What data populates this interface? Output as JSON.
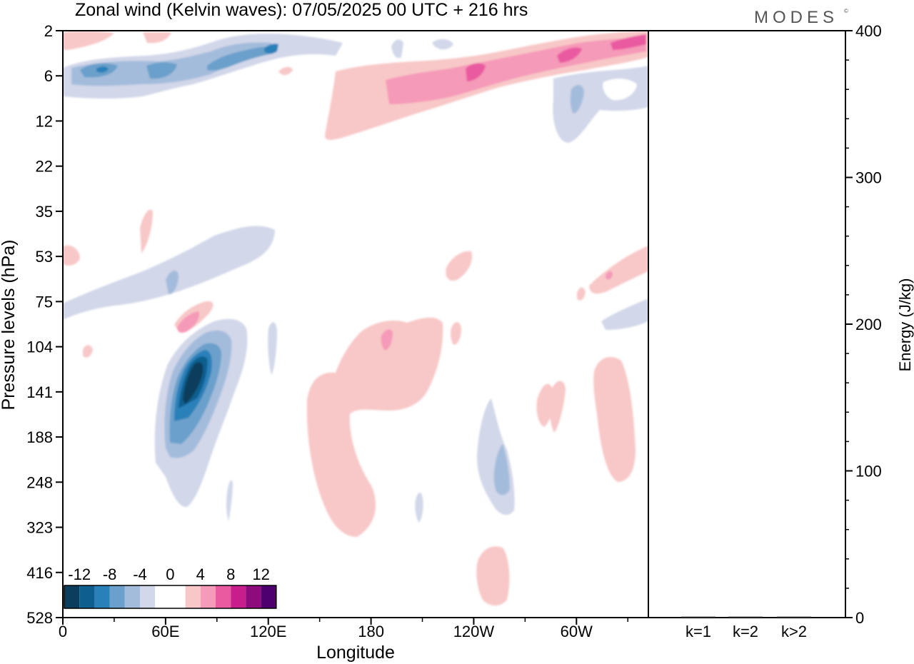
{
  "header": {
    "title": "Zonal wind (Kelvin waves):  07/05/2025  00 UTC  + 216 hrs",
    "brand": "MODES",
    "brand_mark": "©"
  },
  "chart_data": [
    {
      "type": "heatmap",
      "xlabel": "Longitude",
      "ylabel": "Pressure levels (hPa)",
      "x_ticks": [
        "0",
        "60E",
        "120E",
        "180",
        "120W",
        "60W"
      ],
      "y_ticks": [
        "2",
        "6",
        "12",
        "22",
        "35",
        "53",
        "75",
        "104",
        "141",
        "188",
        "248",
        "323",
        "416",
        "528"
      ],
      "y_inverted": true,
      "grid": false,
      "colorbar": {
        "labels": [
          "-12",
          "-8",
          "-4",
          "0",
          "4",
          "8",
          "12"
        ],
        "colors": [
          "#0b3d5c",
          "#0e5f8f",
          "#2a80b9",
          "#6aa0cb",
          "#a4bcdc",
          "#d2d7e9",
          "#ffffff",
          "#ffffff",
          "#f8c8c8",
          "#f59ab8",
          "#ea5aa0",
          "#c81e8c",
          "#8e0b7e",
          "#4f0070"
        ],
        "placement": "bottom-left"
      },
      "features": [
        {
          "sign": "negative",
          "peak": -12,
          "lon": 75,
          "level": 141
        },
        {
          "sign": "negative",
          "peak": -8,
          "lon": 120,
          "level": 3
        },
        {
          "sign": "negative",
          "peak": -8,
          "lon": 25,
          "level": 6
        },
        {
          "sign": "negative",
          "peak": -4,
          "lon": 60,
          "level": 75
        },
        {
          "sign": "negative",
          "peak": -4,
          "lon": 253,
          "level": 248
        },
        {
          "sign": "negative",
          "peak": -4,
          "lon": 297,
          "level": 8
        },
        {
          "sign": "positive",
          "peak": 8,
          "lon": 252,
          "level": 4
        },
        {
          "sign": "positive",
          "peak": 6,
          "lon": 225,
          "level": 6
        },
        {
          "sign": "positive",
          "peak": 6,
          "lon": 67,
          "level": 90
        },
        {
          "sign": "positive",
          "peak": 6,
          "lon": 193,
          "level": 104
        },
        {
          "sign": "positive",
          "peak": 6,
          "lon": 320,
          "level": 60
        },
        {
          "sign": "positive",
          "peak": 4,
          "lon": 165,
          "level": 188
        },
        {
          "sign": "positive",
          "peak": 4,
          "lon": 328,
          "level": 160
        },
        {
          "sign": "positive",
          "peak": 4,
          "lon": 253,
          "level": 450
        }
      ]
    },
    {
      "type": "bar",
      "categories": [
        "k=1",
        "k=2",
        "k>2"
      ],
      "values": [
        0,
        0,
        0
      ],
      "ylabel": "Energy (J/kg)",
      "ylim": [
        0,
        400
      ],
      "y_ticks": [
        "0",
        "100",
        "200",
        "300",
        "400"
      ],
      "grid": false
    }
  ]
}
